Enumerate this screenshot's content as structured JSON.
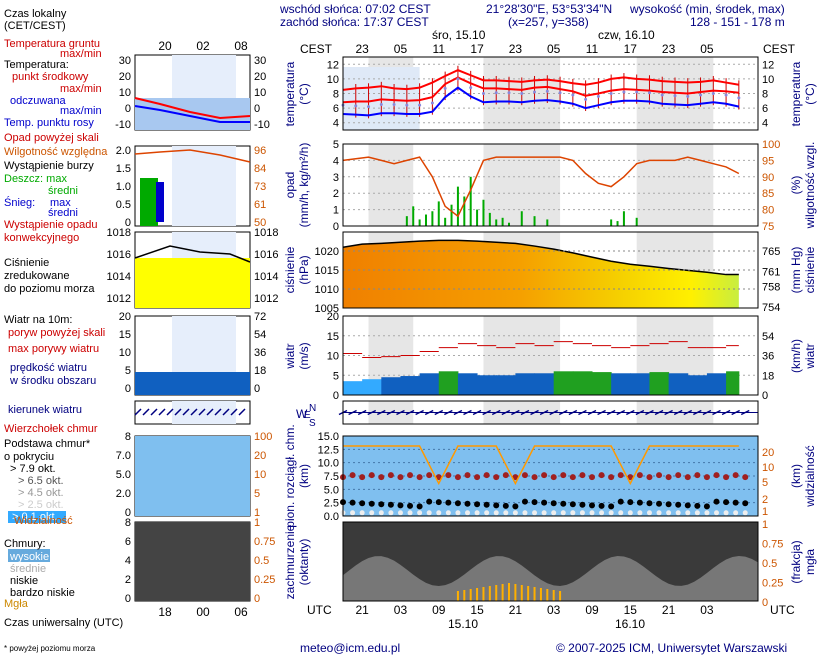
{
  "header": {
    "sunrise": "wschód słońca: 07:02 CEST",
    "sunset": "zachód słońca: 17:37 CEST",
    "coords": "21°28'30\"E, 53°53'34\"N",
    "grid": "(x=257,  y=358)",
    "height_label": "wysokość (min, środek, max)",
    "height_values": "128 - 151 - 178 m"
  },
  "footer": {
    "email": "meteo@icm.edu.pl",
    "copyright": "© 2007-2025 ICM, Uniwersytet Warszawski",
    "note": "* powyżej poziomu morza",
    "utc_label": "Czas uniwersalny (UTC)",
    "day1": "15.10",
    "day2": "16.10"
  },
  "legend": {
    "local_time": "Czas lokalny",
    "local_time2": "(CET/CEST)",
    "ground_temp": "Temperatura gruntu",
    "maxmin": "max/min",
    "temperature": "Temperatura:",
    "mid_point": "punkt środkowy",
    "maxmin2": "max/min",
    "perceived": "odczuwana",
    "maxmin3": "max/min",
    "dew_point": "Temp. punktu rosy",
    "precip_above": "Opad powyżej skali",
    "humidity": "Wilgotność względna",
    "storm": "Wystąpienie burzy",
    "rain": "Deszcz: max",
    "mean1": "średni",
    "snow": "Śnieg:",
    "snow_max": "max",
    "mean2": "średni",
    "conv1": "Wystąpienie opadu",
    "conv2": "konwekcyjnego",
    "pressure1": "Ciśnienie",
    "pressure2": "zredukowane",
    "pressure3": "do poziomu morza",
    "wind": "Wiatr na 10m:",
    "gust_above": "poryw powyżej skali",
    "gust_max": "max porywy wiatru",
    "wind_speed": "prędkość wiatru",
    "wind_area": "w środku obszaru",
    "wind_dir": "kierunek wiatru",
    "cloud_top": "Wierzchołek chmur",
    "cloud_base1": "Podstawa chmur*",
    "cloud_base2": "o pokryciu",
    "ok79": "> 7.9 okt.",
    "ok65": "> 6.5 okt.",
    "ok45": "> 4.5 okt.",
    "ok25": "> 2.5 okt.",
    "ok01": "> 0.1 okt.",
    "visibility": "Widzialność",
    "clouds": "Chmury:",
    "high": "wysokie",
    "mid": "średnie",
    "low": "niskie",
    "very_low": "bardzo niskie",
    "fog": "Mgła"
  },
  "small_axes": {
    "top_hours": [
      "20",
      "02",
      "08"
    ],
    "bottom_hours": [
      "18",
      "00",
      "06"
    ],
    "temp_ticks": [
      "30",
      "20",
      "10",
      "0",
      "-10"
    ],
    "precip_ticks": [
      "2.0",
      "1.5",
      "1.0",
      "0.5",
      "0"
    ],
    "humid_ticks": [
      "96",
      "84",
      "73",
      "61",
      "50"
    ],
    "press_ticks": [
      "1018",
      "1016",
      "1014",
      "1012"
    ],
    "wind_ticks": [
      "20",
      "15",
      "10",
      "5",
      "0"
    ],
    "wind_kmh": [
      "72",
      "54",
      "36",
      "18",
      "0"
    ],
    "cb_ticks": [
      "8",
      "7.0",
      "5.0",
      "2.0",
      "0"
    ],
    "vis_ticks": [
      "100",
      "20",
      "10",
      "5",
      "1"
    ],
    "cl_ticks": [
      "8",
      "6",
      "4",
      "2",
      "0"
    ],
    "frac_ticks": [
      "1",
      "0.75",
      "0.5",
      "0.25",
      "0"
    ]
  },
  "main_axes": {
    "cest": "CEST",
    "utc": "UTC",
    "day_label1": "śro, 15.10",
    "day_label2": "czw, 16.10",
    "top_hours": [
      "23",
      "05",
      "11",
      "17",
      "23",
      "05",
      "11",
      "17",
      "23",
      "05"
    ],
    "bottom_hours": [
      "21",
      "03",
      "09",
      "15",
      "21",
      "03",
      "09",
      "15",
      "21",
      "03"
    ],
    "temp_ticks": [
      "12",
      "10",
      "8",
      "6",
      "4"
    ],
    "precip_ticks": [
      "5",
      "4",
      "3",
      "2",
      "1",
      "0"
    ],
    "humid_ticks": [
      "100",
      "95",
      "90",
      "85",
      "80",
      "75"
    ],
    "press_ticks": [
      "1020",
      "1015",
      "1010",
      "1005"
    ],
    "press_mmhg": [
      "765",
      "761",
      "758",
      "754"
    ],
    "wind_ticks": [
      "20",
      "15",
      "10",
      "5",
      "0"
    ],
    "wind_kmh": [
      "54",
      "36",
      "18",
      "0"
    ],
    "cb_ticks": [
      "15.0",
      "12.5",
      "10.0",
      "7.5",
      "5.0",
      "2.5",
      "0.0"
    ],
    "vis_ticks": [
      "20",
      "10",
      "5",
      "2",
      "1"
    ],
    "frac_ticks": [
      "1",
      "0.75",
      "0.5",
      "0.25",
      "0"
    ]
  },
  "panel_titles": {
    "temp_l": "temperatura",
    "temp_unit_l": "(°C)",
    "temp_r": "temperatura",
    "temp_unit_r": "(°C)",
    "precip_l": "opad",
    "precip_unit_l": "(mm/h, kg/m²/h)",
    "humid_r": "wilgotność wzgl.",
    "humid_unit_r": "(%)",
    "press_l": "ciśnienie",
    "press_unit_l": "(hPa)",
    "press_r": "ciśnienie",
    "press_unit_r": "(mm Hg)",
    "wind_l": "wiatr",
    "wind_unit_l": "(m/s)",
    "wind_r": "wiatr",
    "wind_unit_r": "(km/h)",
    "wd_l": "W",
    "wd_n": "N",
    "wd_s": "S",
    "wd_e": "E",
    "cloud_l1": "pion. rozciągł. chm.",
    "cloud_l2": "(km)",
    "cloud_r1": "widzialność",
    "cloud_r2": "(km)",
    "cov_l1": "zachmurzenie",
    "cov_l2": "(oktanty)",
    "cov_r1": "mgła",
    "cov_r2": "(frakcja)"
  },
  "chart_data": [
    {
      "type": "line",
      "title": "temperatura",
      "ylabel": "(°C)",
      "ylim": [
        3,
        13
      ],
      "x_hours_utc": [
        18,
        20,
        22,
        24,
        26,
        28,
        30,
        32,
        34,
        36,
        38,
        40,
        42,
        44,
        46,
        48,
        50,
        52,
        54,
        56,
        58,
        60,
        62,
        64,
        66,
        68,
        70,
        72,
        74,
        76,
        78,
        80
      ],
      "series": [
        {
          "name": "max",
          "color": "#ff0000",
          "values": [
            8.5,
            8.7,
            8.8,
            9.0,
            8.7,
            8.6,
            8.8,
            9.5,
            10.4,
            11.2,
            10.5,
            9.8,
            9.8,
            9.7,
            9.6,
            9.8,
            9.9,
            9.7,
            9.4,
            9.2,
            9.5,
            10.0,
            10.2,
            10.0,
            9.9,
            9.7,
            9.6,
            9.5,
            9.6,
            9.8,
            9.5,
            9.2
          ]
        },
        {
          "name": "punkt środkowy",
          "color": "#ff0000",
          "values": [
            6.8,
            6.9,
            6.9,
            7.2,
            7.1,
            7.0,
            7.1,
            7.5,
            9.3,
            10.2,
            9.4,
            8.7,
            8.7,
            8.6,
            8.5,
            8.8,
            8.9,
            8.6,
            8.3,
            7.7,
            8.0,
            8.4,
            8.6,
            8.5,
            8.4,
            8.2,
            8.1,
            8.0,
            8.2,
            8.4,
            8.3,
            8.1
          ]
        },
        {
          "name": "odczuwana",
          "color": "#0000ff",
          "values": [
            5.2,
            5.1,
            5.0,
            5.3,
            5.3,
            5.2,
            5.2,
            5.5,
            7.5,
            8.8,
            7.6,
            6.8,
            6.9,
            6.9,
            6.8,
            7.0,
            7.1,
            6.9,
            6.6,
            6.0,
            6.4,
            6.8,
            7.0,
            7.0,
            6.9,
            6.6,
            6.5,
            6.4,
            6.6,
            6.8,
            6.6,
            6.2
          ]
        }
      ]
    },
    {
      "type": "bar",
      "title": "opad",
      "ylabel": "(mm/h, kg/m²/h)",
      "ylim": [
        0,
        5
      ],
      "x_hours_utc": [
        28,
        29,
        30,
        31,
        32,
        33,
        34,
        35,
        36,
        37,
        38,
        39,
        40,
        41,
        42,
        43,
        44,
        46,
        48,
        50,
        60,
        61,
        62,
        64
      ],
      "values": [
        0.6,
        1.2,
        0.4,
        0.7,
        0.9,
        1.5,
        0.5,
        1.3,
        2.4,
        1.8,
        3.0,
        1.0,
        1.6,
        0.8,
        0.4,
        0.5,
        0.2,
        0.9,
        0.6,
        0.4,
        0.4,
        0.3,
        0.9,
        0.5
      ]
    },
    {
      "type": "line",
      "title": "wilgotność wzgl.",
      "ylabel": "(%)",
      "ylim": [
        75,
        100
      ],
      "x_hours_utc": [
        18,
        20,
        22,
        24,
        26,
        28,
        30,
        32,
        34,
        36,
        38,
        40,
        42,
        44,
        46,
        48,
        50,
        52,
        54,
        56,
        58,
        60,
        62,
        64,
        66,
        68,
        70,
        72,
        74,
        76,
        78,
        80
      ],
      "values": [
        95,
        95.5,
        96,
        95,
        94,
        95,
        96,
        90,
        81,
        78,
        86,
        95,
        96,
        96,
        96,
        96,
        96,
        96,
        95,
        91,
        88,
        87,
        90,
        94,
        95,
        95,
        95,
        96,
        95,
        94,
        93,
        91
      ]
    },
    {
      "type": "area",
      "title": "ciśnienie",
      "ylabel": "(hPa)",
      "ylim": [
        1005,
        1025
      ],
      "x_hours_utc": [
        18,
        21,
        24,
        27,
        30,
        33,
        36,
        39,
        42,
        45,
        48,
        51,
        54,
        57,
        60,
        63,
        66,
        69,
        72,
        75,
        78,
        80
      ],
      "values": [
        1021.0,
        1021.8,
        1022.0,
        1022.3,
        1022.6,
        1022.8,
        1022.8,
        1022.6,
        1022.3,
        1022.0,
        1021.3,
        1020.5,
        1019.5,
        1018.4,
        1017.3,
        1016.5,
        1016.0,
        1015.4,
        1014.9,
        1014.4,
        1013.8,
        1013.8
      ]
    },
    {
      "type": "area",
      "title": "wiatr",
      "ylabel": "(m/s)",
      "ylim": [
        0,
        20
      ],
      "x_hours_utc": [
        18,
        21,
        24,
        27,
        30,
        33,
        36,
        39,
        42,
        45,
        48,
        51,
        54,
        57,
        60,
        63,
        66,
        69,
        72,
        75,
        78,
        80
      ],
      "series": [
        {
          "name": "prędkość wiatru",
          "values": [
            3.5,
            4.0,
            4.5,
            4.8,
            5.5,
            6.0,
            5.5,
            5.0,
            5.0,
            5.5,
            5.5,
            6.0,
            6.0,
            5.8,
            5.5,
            5.5,
            5.8,
            5.5,
            5.0,
            5.5,
            6.0,
            5.5
          ]
        },
        {
          "name": "max porywy wiatru",
          "values": [
            10.5,
            9.5,
            9.7,
            10.0,
            11.0,
            12.0,
            13.0,
            12.5,
            12.0,
            13.0,
            12.5,
            13.5,
            13.0,
            12.5,
            12.0,
            12.5,
            13.0,
            13.5,
            12.0,
            12.0,
            12.5,
            12.0
          ]
        }
      ]
    },
    {
      "type": "line",
      "title": "widzialność",
      "ylabel": "(km)",
      "x_hours_utc": [
        18,
        21,
        24,
        27,
        30,
        33,
        36,
        39,
        42,
        45,
        48,
        51,
        54,
        57,
        60,
        63,
        66,
        69,
        72,
        75,
        78,
        80
      ],
      "values": [
        20,
        20,
        20,
        20,
        20,
        5,
        20,
        20,
        20,
        5,
        20,
        20,
        20,
        20,
        20,
        5,
        20,
        20,
        20,
        20,
        20,
        20
      ]
    }
  ]
}
